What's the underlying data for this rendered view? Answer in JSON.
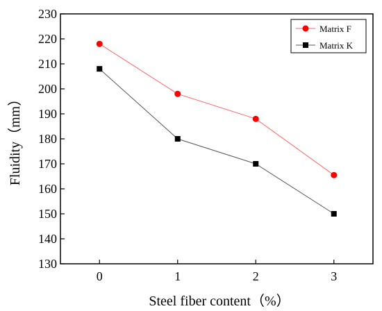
{
  "chart_data": {
    "type": "line",
    "title": "",
    "xlabel": "Steel fiber content（%）",
    "ylabel": "Fluidity（mm）",
    "x": [
      0,
      1,
      2,
      3
    ],
    "xlim": [
      -0.5,
      3.5
    ],
    "ylim": [
      130,
      230
    ],
    "x_ticks": [
      "0",
      "1",
      "2",
      "3"
    ],
    "y_ticks": [
      "130",
      "140",
      "150",
      "160",
      "170",
      "180",
      "190",
      "200",
      "210",
      "220",
      "230"
    ],
    "grid": false,
    "legend_position": "top-right",
    "series": [
      {
        "name": "Matrix F",
        "values": [
          218,
          198,
          188,
          165.5
        ],
        "marker": "circle",
        "color": "#ff0000",
        "line_color": "#ff6666"
      },
      {
        "name": "Matrix K",
        "values": [
          208,
          180,
          170,
          150
        ],
        "marker": "square",
        "color": "#000000",
        "line_color": "#555555"
      }
    ]
  }
}
